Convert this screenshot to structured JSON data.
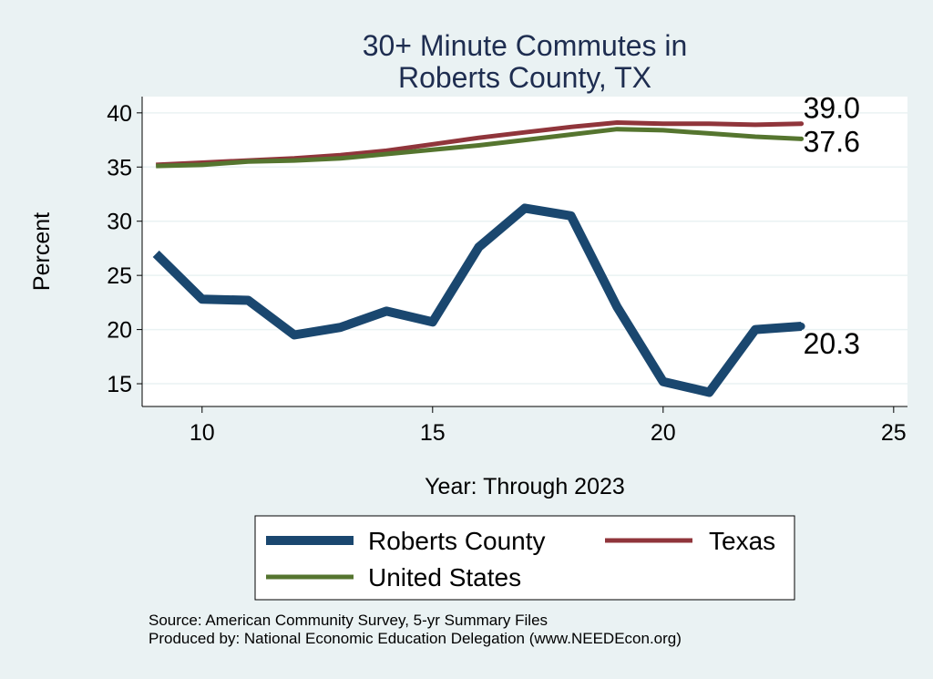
{
  "chart_data": {
    "type": "line",
    "title_lines": [
      "30+ Minute Commutes in",
      "Roberts County, TX"
    ],
    "xlabel": "Year: Through 2023",
    "ylabel": "Percent",
    "xlim": [
      8.7,
      25.3
    ],
    "ylim": [
      12.9,
      41.5
    ],
    "xticks": [
      10,
      15,
      20,
      25
    ],
    "yticks": [
      15,
      20,
      25,
      30,
      35,
      40
    ],
    "grid": true,
    "legend_position": "bottom",
    "series": [
      {
        "name": "Roberts County",
        "color": "#1a476f",
        "x": [
          9,
          10,
          11,
          12,
          13,
          14,
          15,
          16,
          17,
          18,
          19,
          20,
          21,
          22,
          23
        ],
        "values": [
          27.0,
          22.8,
          22.7,
          19.5,
          20.2,
          21.7,
          20.7,
          27.6,
          31.2,
          30.5,
          22.1,
          15.2,
          14.2,
          20.0,
          20.3
        ],
        "end_label": "20.3"
      },
      {
        "name": "Texas",
        "color": "#90353b",
        "x": [
          9,
          10,
          11,
          12,
          13,
          14,
          15,
          16,
          17,
          18,
          19,
          20,
          21,
          22,
          23
        ],
        "values": [
          35.2,
          35.4,
          35.6,
          35.8,
          36.1,
          36.5,
          37.1,
          37.7,
          38.2,
          38.7,
          39.1,
          39.0,
          39.0,
          38.9,
          39.0
        ],
        "end_label": "39.0"
      },
      {
        "name": "United States",
        "color": "#55752f",
        "x": [
          9,
          10,
          11,
          12,
          13,
          14,
          15,
          16,
          17,
          18,
          19,
          20,
          21,
          22,
          23
        ],
        "values": [
          35.1,
          35.2,
          35.5,
          35.6,
          35.8,
          36.2,
          36.6,
          37.0,
          37.5,
          38.0,
          38.5,
          38.4,
          38.1,
          37.8,
          37.6
        ],
        "end_label": "37.6"
      }
    ]
  },
  "footer": {
    "source": "Source: American Community Survey, 5-yr Summary Files",
    "produced_by": "Produced by: National Economic Education Delegation (www.NEEDEcon.org)"
  }
}
